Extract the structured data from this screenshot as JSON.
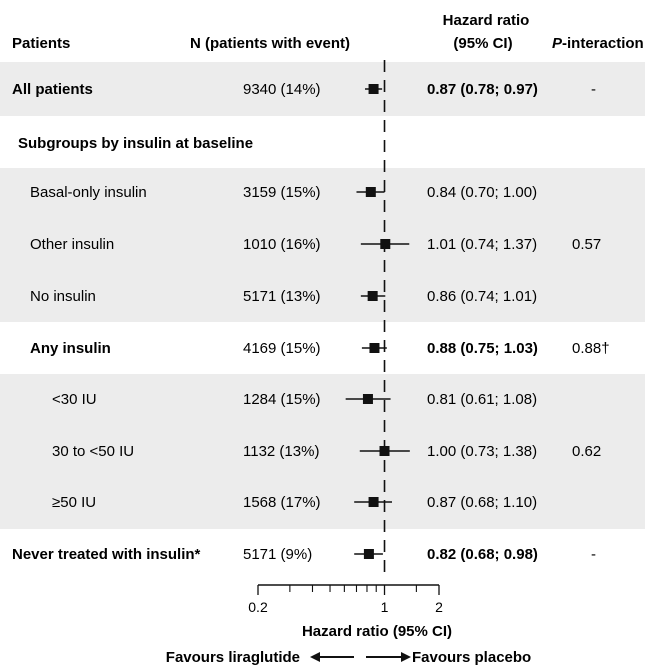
{
  "chart_data": {
    "type": "forest",
    "headers": {
      "patients": "Patients",
      "n": "N (patients with event)",
      "hr_line1": "Hazard ratio",
      "hr_line2": "(95% CI)",
      "p_italic": "P",
      "p_rest": "-interaction"
    },
    "rows": [
      {
        "label": "All patients",
        "n": "9340 (14%)",
        "hr": 0.87,
        "lo": 0.78,
        "hi": 0.97,
        "hr_text": "0.87 (0.78; 0.97)",
        "p": "-",
        "bold": true,
        "indent": 0,
        "shaded": true
      },
      {
        "label": "Subgroups by insulin at baseline",
        "n": "",
        "hr": null,
        "lo": null,
        "hi": null,
        "hr_text": "",
        "p": "",
        "bold": true,
        "indent": 1,
        "shaded": false
      },
      {
        "label": "Basal-only insulin",
        "n": "3159 (15%)",
        "hr": 0.84,
        "lo": 0.7,
        "hi": 1.0,
        "hr_text": "0.84 (0.70; 1.00)",
        "p": "",
        "bold": false,
        "indent": 2,
        "shaded": true
      },
      {
        "label": "Other insulin",
        "n": "1010 (16%)",
        "hr": 1.01,
        "lo": 0.74,
        "hi": 1.37,
        "hr_text": "1.01 (0.74; 1.37)",
        "p": "0.57",
        "bold": false,
        "indent": 2,
        "shaded": true
      },
      {
        "label": "No insulin",
        "n": "5171 (13%)",
        "hr": 0.86,
        "lo": 0.74,
        "hi": 1.01,
        "hr_text": "0.86 (0.74; 1.01)",
        "p": "",
        "bold": false,
        "indent": 2,
        "shaded": true
      },
      {
        "label": "Any insulin",
        "n": "4169 (15%)",
        "hr": 0.88,
        "lo": 0.75,
        "hi": 1.03,
        "hr_text": "0.88 (0.75; 1.03)",
        "p": "0.88†",
        "bold": true,
        "indent": 2,
        "shaded": false
      },
      {
        "label": "<30 IU",
        "n": "1284 (15%)",
        "hr": 0.81,
        "lo": 0.61,
        "hi": 1.08,
        "hr_text": "0.81 (0.61; 1.08)",
        "p": "",
        "bold": false,
        "indent": 3,
        "shaded": true
      },
      {
        "label": "30 to <50 IU",
        "n": "1132 (13%)",
        "hr": 1.0,
        "lo": 0.73,
        "hi": 1.38,
        "hr_text": "1.00 (0.73; 1.38)",
        "p": "0.62",
        "bold": false,
        "indent": 3,
        "shaded": true
      },
      {
        "label": "≥50 IU",
        "n": "1568 (17%)",
        "hr": 0.87,
        "lo": 0.68,
        "hi": 1.1,
        "hr_text": "0.87 (0.68; 1.10)",
        "p": "",
        "bold": false,
        "indent": 3,
        "shaded": true
      },
      {
        "label": "Never treated with insulin*",
        "n": "5171 (9%)",
        "hr": 0.82,
        "lo": 0.68,
        "hi": 0.98,
        "hr_text": "0.82 (0.68; 0.98)",
        "p": "-",
        "bold": true,
        "indent": 0,
        "shaded": false
      }
    ],
    "x_scale": "log",
    "xlim": [
      0.2,
      2
    ],
    "ticks": [
      {
        "value": 0.2,
        "label": "0.2"
      },
      {
        "value": 1,
        "label": "1"
      },
      {
        "value": 2,
        "label": "2"
      }
    ],
    "minor_ticks": [
      0.3,
      0.4,
      0.5,
      0.6,
      0.7,
      0.8,
      0.9,
      1.5
    ],
    "reference_line": 1,
    "xlabel": "Hazard ratio (95% CI)",
    "favours_left": "Favours liraglutide",
    "favours_right": "Favours placebo",
    "colors": {
      "shade": "#ececec",
      "ink": "#111111"
    }
  }
}
